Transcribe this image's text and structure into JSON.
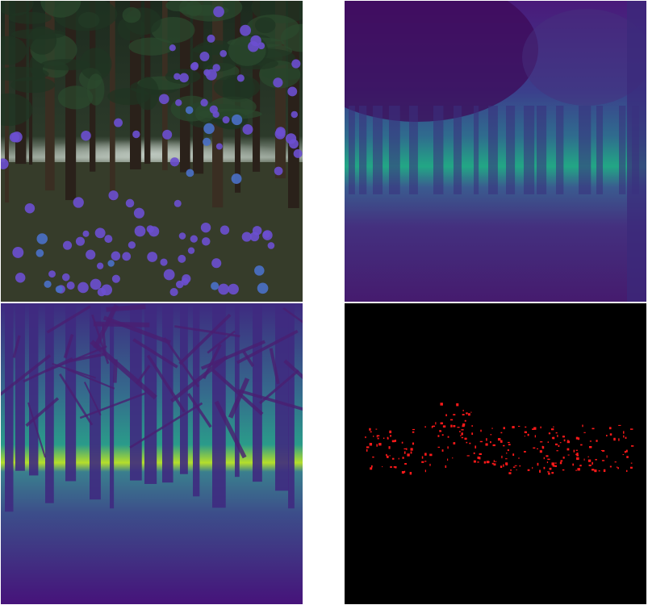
{
  "panels": [
    {
      "name": "forest-rgb-with-keypoints",
      "keypoint_color": "#6b4fd0",
      "keypoint_color_alt": "#4a70c8"
    },
    {
      "name": "predicted-depth-map",
      "low_color": "#450a5c",
      "high_color": "#22a785"
    },
    {
      "name": "ground-truth-depth-map",
      "low_color": "#440154",
      "high_color": "#b5de2b"
    },
    {
      "name": "error-map",
      "background": "#000000",
      "point_color": "#ff1a1a"
    }
  ]
}
